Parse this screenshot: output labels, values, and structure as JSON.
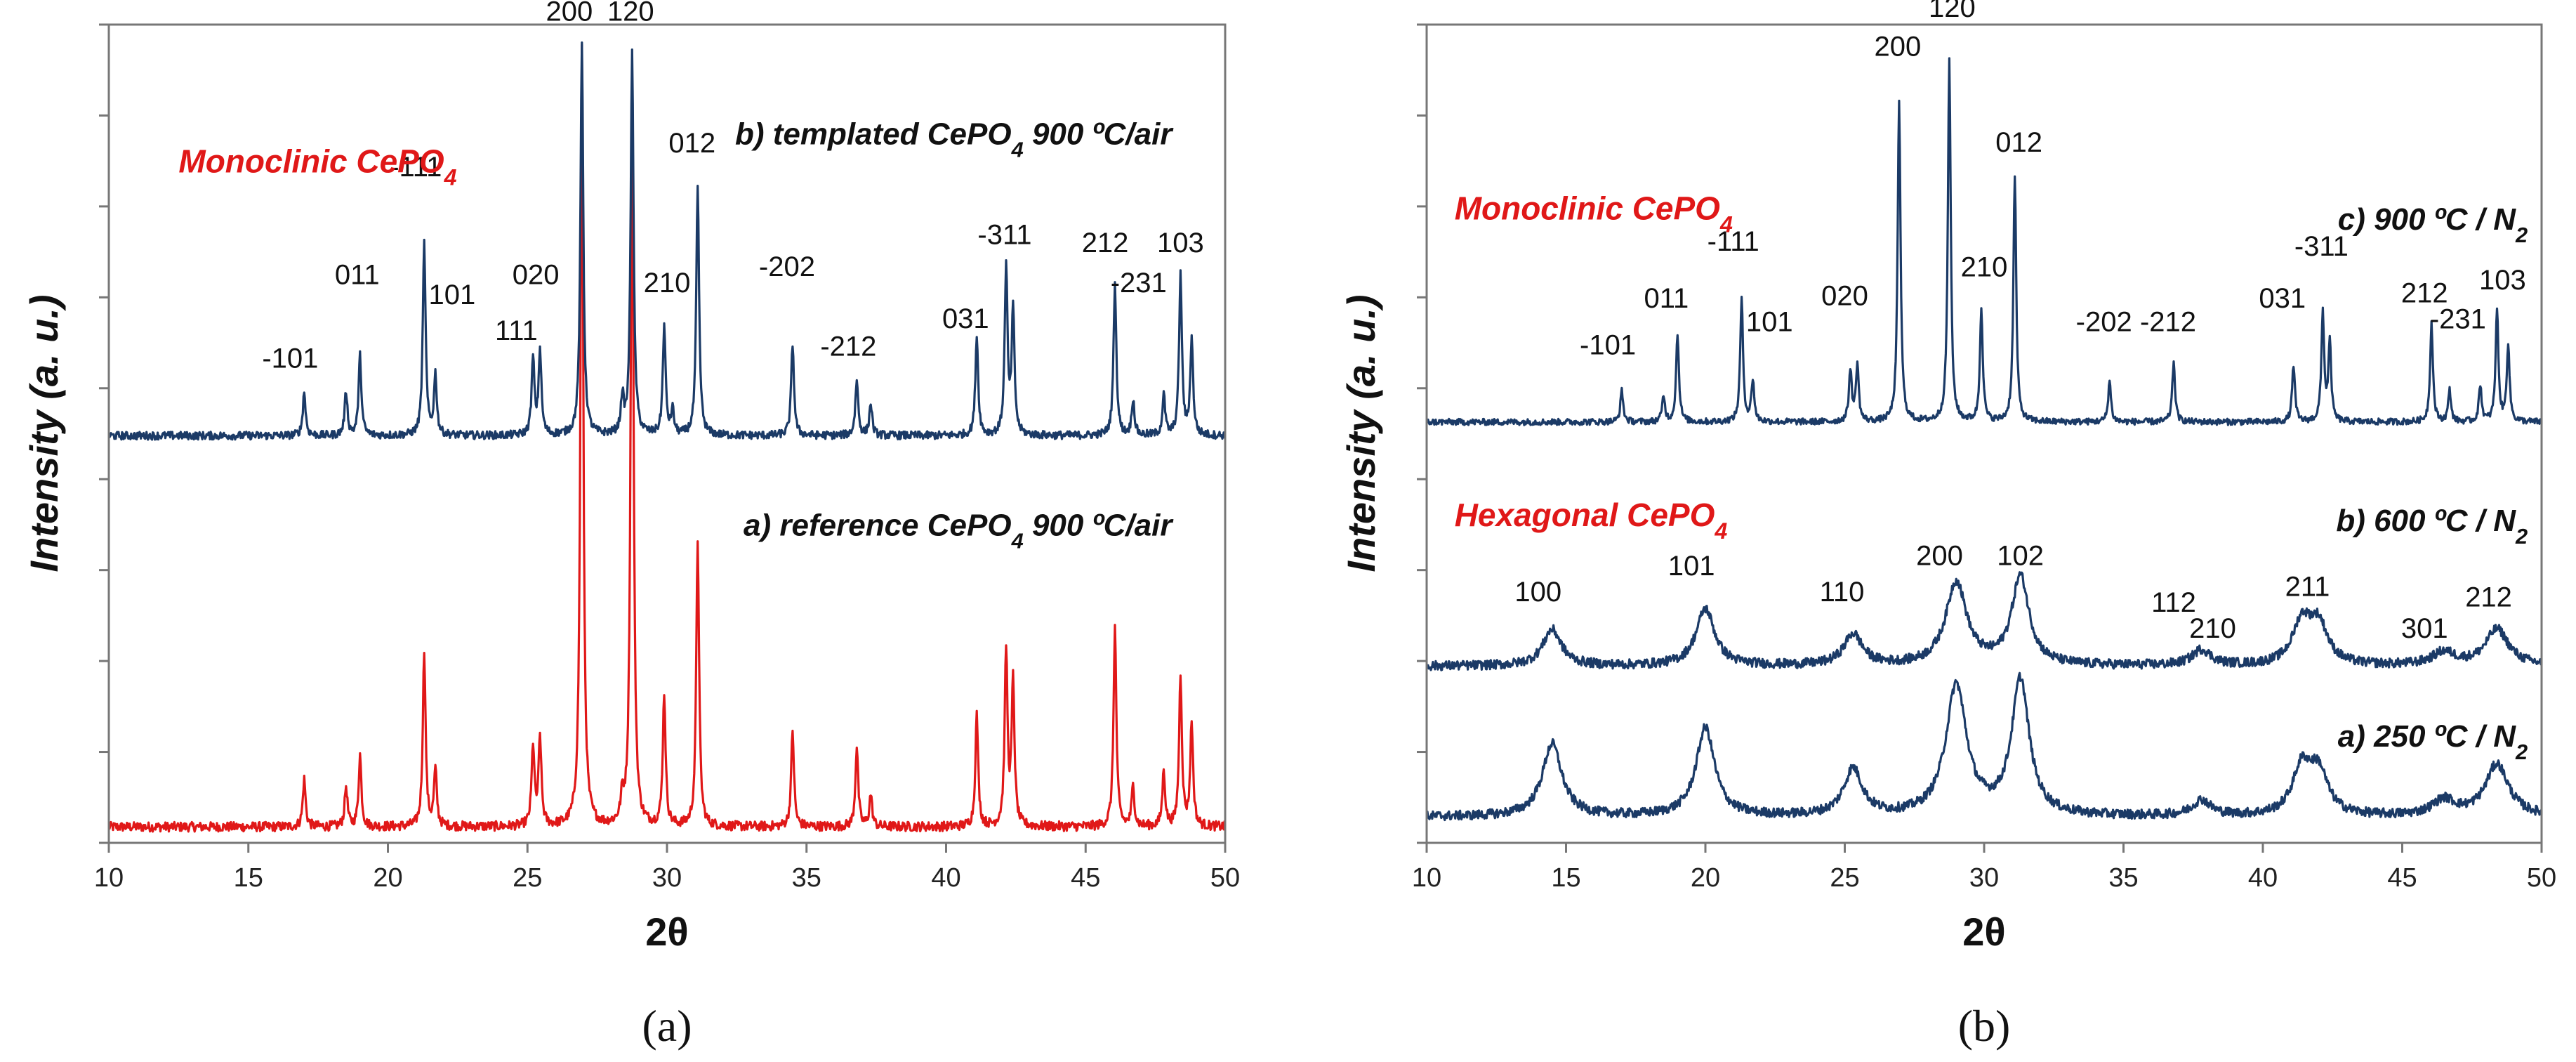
{
  "figure": {
    "panels": [
      {
        "id": "a",
        "panel_label": "(a)",
        "xlabel": "2θ",
        "ylabel": "Intensity (a. u.)",
        "xlim": [
          10,
          50
        ],
        "x_ticks": [
          "10",
          "15",
          "20",
          "25",
          "30",
          "35",
          "40",
          "45",
          "50"
        ],
        "phase_labels": [
          {
            "text": "Monoclinic CePO",
            "sub": "4",
            "color": "#e01818",
            "x": 12.5,
            "y": 1.68
          }
        ]
      },
      {
        "id": "b",
        "panel_label": "(b)",
        "xlabel": "2θ",
        "ylabel": "Intensity (a. u.)",
        "xlim": [
          10,
          50
        ],
        "x_ticks": [
          "10",
          "15",
          "20",
          "25",
          "30",
          "35",
          "40",
          "45",
          "50"
        ],
        "phase_labels": [
          {
            "text": "Monoclinic CePO",
            "sub": "4",
            "color": "#e01818",
            "x": 11.0,
            "y": 2.4
          },
          {
            "text": "Hexagonal CePO",
            "sub": "4",
            "color": "#e01818",
            "x": 11.0,
            "y": 1.22
          }
        ]
      }
    ]
  },
  "chart_data": [
    {
      "type": "line",
      "title": "",
      "panel": "(a)",
      "xlabel": "2θ",
      "ylabel": "Intensity (a. u.)",
      "xlim": [
        10,
        50
      ],
      "ylim": [
        0,
        2.05
      ],
      "grid": false,
      "series": [
        {
          "name": "a) reference CePO4 900 ºC/air",
          "label": {
            "pre": "a) reference CePO",
            "sub": "4",
            "post": " 900 ºC/air"
          },
          "color": "#e01818",
          "baseline": 0.04,
          "noise": 0.012,
          "label_pos": [
            48.1,
            0.77
          ],
          "peaks": [
            {
              "x": 17.0,
              "h": 0.12
            },
            {
              "x": 18.5,
              "h": 0.1
            },
            {
              "x": 19.0,
              "h": 0.18
            },
            {
              "x": 21.3,
              "h": 0.44
            },
            {
              "x": 21.7,
              "h": 0.14
            },
            {
              "x": 25.2,
              "h": 0.2
            },
            {
              "x": 25.45,
              "h": 0.22
            },
            {
              "x": 26.95,
              "h": 1.95
            },
            {
              "x": 28.4,
              "h": 0.06
            },
            {
              "x": 28.75,
              "h": 1.86
            },
            {
              "x": 29.9,
              "h": 0.33
            },
            {
              "x": 31.1,
              "h": 0.72
            },
            {
              "x": 34.5,
              "h": 0.24
            },
            {
              "x": 36.8,
              "h": 0.2
            },
            {
              "x": 37.3,
              "h": 0.08
            },
            {
              "x": 41.1,
              "h": 0.28
            },
            {
              "x": 42.15,
              "h": 0.44
            },
            {
              "x": 42.4,
              "h": 0.36
            },
            {
              "x": 46.05,
              "h": 0.5
            },
            {
              "x": 46.7,
              "h": 0.1
            },
            {
              "x": 47.8,
              "h": 0.14
            },
            {
              "x": 48.4,
              "h": 0.38
            },
            {
              "x": 48.8,
              "h": 0.26
            }
          ],
          "annotations": []
        },
        {
          "name": "b) templated CePO4 900 ºC/air",
          "label": {
            "pre": "b) templated CePO",
            "sub": "4",
            "post": " 900 ºC/air"
          },
          "color": "#1b3a66",
          "baseline": 1.02,
          "noise": 0.01,
          "label_pos": [
            48.1,
            1.75
          ],
          "peaks": [
            {
              "x": 17.0,
              "h": 0.11
            },
            {
              "x": 18.5,
              "h": 0.11
            },
            {
              "x": 19.0,
              "h": 0.2
            },
            {
              "x": 21.3,
              "h": 0.48
            },
            {
              "x": 21.7,
              "h": 0.15
            },
            {
              "x": 25.2,
              "h": 0.19
            },
            {
              "x": 25.45,
              "h": 0.21
            },
            {
              "x": 26.95,
              "h": 0.98
            },
            {
              "x": 28.4,
              "h": 0.09
            },
            {
              "x": 28.75,
              "h": 0.97
            },
            {
              "x": 29.9,
              "h": 0.27
            },
            {
              "x": 30.2,
              "h": 0.06
            },
            {
              "x": 31.1,
              "h": 0.62
            },
            {
              "x": 34.5,
              "h": 0.23
            },
            {
              "x": 36.8,
              "h": 0.14
            },
            {
              "x": 37.3,
              "h": 0.08
            },
            {
              "x": 41.1,
              "h": 0.25
            },
            {
              "x": 42.15,
              "h": 0.42
            },
            {
              "x": 42.4,
              "h": 0.31
            },
            {
              "x": 46.05,
              "h": 0.38
            },
            {
              "x": 46.7,
              "h": 0.09
            },
            {
              "x": 47.8,
              "h": 0.1
            },
            {
              "x": 48.4,
              "h": 0.4
            },
            {
              "x": 48.8,
              "h": 0.24
            }
          ],
          "annotations": [
            {
              "text": "-101",
              "x": 16.5,
              "y": 1.19
            },
            {
              "text": "011",
              "x": 18.9,
              "y": 1.4
            },
            {
              "text": "-111",
              "x": 21.0,
              "y": 1.67
            },
            {
              "text": "101",
              "x": 22.3,
              "y": 1.35
            },
            {
              "text": "111",
              "x": 24.6,
              "y": 1.26
            },
            {
              "text": "020",
              "x": 25.3,
              "y": 1.4
            },
            {
              "text": "200",
              "x": 26.5,
              "y": 2.06
            },
            {
              "text": "120",
              "x": 28.7,
              "y": 2.06
            },
            {
              "text": "210",
              "x": 30.0,
              "y": 1.38
            },
            {
              "text": "012",
              "x": 30.9,
              "y": 1.73
            },
            {
              "text": "-202",
              "x": 34.3,
              "y": 1.42
            },
            {
              "text": "-212",
              "x": 36.5,
              "y": 1.22
            },
            {
              "text": "031",
              "x": 40.7,
              "y": 1.29
            },
            {
              "text": "-311",
              "x": 42.1,
              "y": 1.5
            },
            {
              "text": "212",
              "x": 45.7,
              "y": 1.48
            },
            {
              "text": "-231",
              "x": 46.9,
              "y": 1.38
            },
            {
              "text": "103",
              "x": 48.4,
              "y": 1.48
            }
          ]
        }
      ]
    },
    {
      "type": "line",
      "title": "",
      "panel": "(b)",
      "xlabel": "2θ",
      "ylabel": "Intensity (a. u.)",
      "xlim": [
        10,
        50
      ],
      "ylim": [
        0,
        3.15
      ],
      "grid": false,
      "series": [
        {
          "name": "a) 250 ºC / N2",
          "label": {
            "pre": "a) 250 ºC / N",
            "sub": "2",
            "post": ""
          },
          "color": "#1b3a66",
          "baseline": 0.1,
          "noise": 0.018,
          "label_pos": [
            49.5,
            0.37
          ],
          "peaks": [
            {
              "x": 14.5,
              "h": 0.28,
              "w": 0.42
            },
            {
              "x": 20.0,
              "h": 0.34,
              "w": 0.4
            },
            {
              "x": 25.3,
              "h": 0.18,
              "w": 0.4
            },
            {
              "x": 29.0,
              "h": 0.5,
              "w": 0.45
            },
            {
              "x": 31.3,
              "h": 0.52,
              "w": 0.38
            },
            {
              "x": 37.8,
              "h": 0.06,
              "w": 0.4
            },
            {
              "x": 41.4,
              "h": 0.18,
              "w": 0.4
            },
            {
              "x": 42.0,
              "h": 0.16,
              "w": 0.4
            },
            {
              "x": 46.5,
              "h": 0.06,
              "w": 0.5
            },
            {
              "x": 48.4,
              "h": 0.2,
              "w": 0.5
            }
          ],
          "annotations": []
        },
        {
          "name": "b) 600 ºC / N2",
          "label": {
            "pre": "b) 600 ºC / N",
            "sub": "2",
            "post": ""
          },
          "color": "#1b3a66",
          "baseline": 0.68,
          "noise": 0.018,
          "label_pos": [
            49.5,
            1.2
          ],
          "peaks": [
            {
              "x": 14.5,
              "h": 0.14,
              "w": 0.4
            },
            {
              "x": 20.0,
              "h": 0.22,
              "w": 0.4
            },
            {
              "x": 25.3,
              "h": 0.12,
              "w": 0.4
            },
            {
              "x": 29.0,
              "h": 0.32,
              "w": 0.45
            },
            {
              "x": 31.3,
              "h": 0.34,
              "w": 0.38
            },
            {
              "x": 37.8,
              "h": 0.06,
              "w": 0.4
            },
            {
              "x": 41.4,
              "h": 0.16,
              "w": 0.4
            },
            {
              "x": 42.0,
              "h": 0.15,
              "w": 0.4
            },
            {
              "x": 46.5,
              "h": 0.05,
              "w": 0.5
            },
            {
              "x": 48.4,
              "h": 0.14,
              "w": 0.5
            }
          ],
          "annotations": [
            {
              "text": "100",
              "x": 14.0,
              "y": 0.93
            },
            {
              "text": "101",
              "x": 19.5,
              "y": 1.03
            },
            {
              "text": "110",
              "x": 24.9,
              "y": 0.93
            },
            {
              "text": "200",
              "x": 28.4,
              "y": 1.07
            },
            {
              "text": "102",
              "x": 31.3,
              "y": 1.07
            },
            {
              "text": "112",
              "x": 36.8,
              "y": 0.89
            },
            {
              "text": "210",
              "x": 38.2,
              "y": 0.79
            },
            {
              "text": "211",
              "x": 41.6,
              "y": 0.95
            },
            {
              "text": "301",
              "x": 45.8,
              "y": 0.79
            },
            {
              "text": "212",
              "x": 48.1,
              "y": 0.91
            }
          ]
        },
        {
          "name": "c) 900 ºC / N2",
          "label": {
            "pre": "c) 900 ºC / N",
            "sub": "2",
            "post": ""
          },
          "color": "#1b3a66",
          "baseline": 1.62,
          "noise": 0.012,
          "label_pos": [
            49.5,
            2.36
          ],
          "peaks": [
            {
              "x": 17.0,
              "h": 0.12
            },
            {
              "x": 18.5,
              "h": 0.1
            },
            {
              "x": 19.0,
              "h": 0.34
            },
            {
              "x": 21.3,
              "h": 0.47
            },
            {
              "x": 21.7,
              "h": 0.16
            },
            {
              "x": 25.2,
              "h": 0.2
            },
            {
              "x": 25.45,
              "h": 0.22
            },
            {
              "x": 26.95,
              "h": 1.24
            },
            {
              "x": 28.75,
              "h": 1.4
            },
            {
              "x": 29.9,
              "h": 0.44
            },
            {
              "x": 31.1,
              "h": 0.95
            },
            {
              "x": 34.5,
              "h": 0.16
            },
            {
              "x": 36.8,
              "h": 0.23
            },
            {
              "x": 41.1,
              "h": 0.22
            },
            {
              "x": 42.15,
              "h": 0.42
            },
            {
              "x": 42.4,
              "h": 0.3
            },
            {
              "x": 46.05,
              "h": 0.38
            },
            {
              "x": 46.7,
              "h": 0.12
            },
            {
              "x": 47.8,
              "h": 0.14
            },
            {
              "x": 48.4,
              "h": 0.43
            },
            {
              "x": 48.8,
              "h": 0.3
            }
          ],
          "annotations": [
            {
              "text": "-101",
              "x": 16.5,
              "y": 1.88
            },
            {
              "text": "011",
              "x": 18.6,
              "y": 2.06
            },
            {
              "text": "-111",
              "x": 21.0,
              "y": 2.28
            },
            {
              "text": "101",
              "x": 22.3,
              "y": 1.97
            },
            {
              "text": "020",
              "x": 25.0,
              "y": 2.07
            },
            {
              "text": "200",
              "x": 26.9,
              "y": 3.03
            },
            {
              "text": "120",
              "x": 28.85,
              "y": 3.18
            },
            {
              "text": "210",
              "x": 30.0,
              "y": 2.18
            },
            {
              "text": "012",
              "x": 31.25,
              "y": 2.66
            },
            {
              "text": "-202",
              "x": 34.3,
              "y": 1.97
            },
            {
              "text": "-212",
              "x": 36.6,
              "y": 1.97
            },
            {
              "text": "031",
              "x": 40.7,
              "y": 2.06
            },
            {
              "text": "-311",
              "x": 42.1,
              "y": 2.26
            },
            {
              "text": "212",
              "x": 45.8,
              "y": 2.08
            },
            {
              "text": "-231",
              "x": 47.0,
              "y": 1.98
            },
            {
              "text": "103",
              "x": 48.6,
              "y": 2.13
            }
          ]
        }
      ]
    }
  ]
}
